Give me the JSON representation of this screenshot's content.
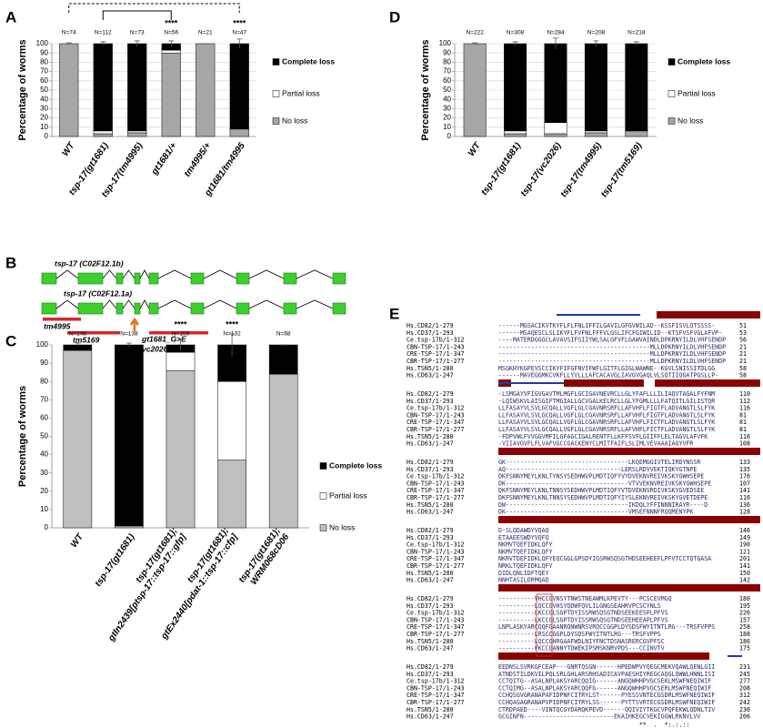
{
  "chart_data": [
    {
      "type": "bar",
      "stacked": true,
      "label": "A",
      "ylabel": "Percentage of worms",
      "categories": [
        "WT",
        "tsp-17(gt1681)",
        "tsp-17(tm4995)",
        "gt1681/+",
        "tm4995/+",
        "gt1681/tm4995"
      ],
      "series": [
        {
          "name": "No loss",
          "color": "#a6a6a6",
          "values": [
            100,
            3,
            4,
            90,
            100,
            8
          ]
        },
        {
          "name": "Partial loss",
          "color": "#ffffff",
          "values": [
            0,
            3,
            2,
            3,
            0,
            0
          ]
        },
        {
          "name": "Complete loss",
          "color": "#000000",
          "values": [
            0,
            94,
            94,
            7,
            0,
            92
          ]
        }
      ],
      "errors": [
        1,
        2,
        3,
        3,
        0,
        5
      ],
      "n_labels": [
        "N=74",
        "N=112",
        "N=73",
        "N=56",
        "N=21",
        "N=47"
      ],
      "significance_labels": [
        null,
        null,
        null,
        "****",
        null,
        "****"
      ],
      "ylim": [
        0,
        100
      ],
      "yticks": [
        0,
        10,
        20,
        30,
        40,
        50,
        60,
        70,
        80,
        90,
        100
      ],
      "grid": true
    },
    {
      "type": "bar",
      "stacked": true,
      "label": "C",
      "ylabel": "Percentage of worms",
      "categories": [
        [
          "WT"
        ],
        [
          "tsp-17(gt1681)"
        ],
        [
          "tsp-17(gt1681);",
          "gtIn2439[ptsp-17::tsp-17::gfp]"
        ],
        [
          "tsp-17(gt1681);",
          "gtEx2440[pdat-1::tsp-17::cfp]"
        ],
        [
          "tsp-17(gt1681);",
          "WRM068cD06"
        ]
      ],
      "series": [
        {
          "name": "No loss",
          "color": "#bfbfbf",
          "values": [
            97,
            1,
            86,
            37,
            84
          ]
        },
        {
          "name": "Partial loss",
          "color": "#ffffff",
          "values": [
            0,
            0,
            10,
            43,
            0
          ]
        },
        {
          "name": "Complete loss",
          "color": "#000000",
          "values": [
            3,
            99,
            4,
            20,
            16
          ]
        }
      ],
      "errors": [
        1,
        1,
        3,
        6,
        0
      ],
      "n_labels": [
        "N=148",
        "N=138",
        "N=109",
        "N=132",
        "N=68"
      ],
      "significance_labels": [
        null,
        null,
        "****",
        "****",
        null
      ],
      "ylim": [
        0,
        100
      ],
      "yticks": [
        0,
        10,
        20,
        30,
        40,
        50,
        60,
        70,
        80,
        90,
        100
      ],
      "grid": false
    },
    {
      "type": "bar",
      "stacked": true,
      "label": "D",
      "ylabel": "Percentage of worms",
      "categories": [
        "WT",
        "tsp-17(gt1681)",
        "tsp-17(vc2026)",
        "tsp-17(tm4995)",
        "tsp-17(tm5169)"
      ],
      "series": [
        {
          "name": "No loss",
          "color": "#a6a6a6",
          "values": [
            100,
            3,
            3,
            4,
            6
          ]
        },
        {
          "name": "Partial loss",
          "color": "#ffffff",
          "values": [
            0,
            3,
            12,
            2,
            0
          ]
        },
        {
          "name": "Complete loss",
          "color": "#000000",
          "values": [
            0,
            94,
            85,
            94,
            94
          ]
        }
      ],
      "errors": [
        1,
        2,
        6,
        3,
        2
      ],
      "n_labels": [
        "N=222",
        "N=308",
        "N=284",
        "N=208",
        "N=218"
      ],
      "significance_labels": [
        null,
        null,
        null,
        null,
        null
      ],
      "ylim": [
        0,
        100
      ],
      "yticks": [
        0,
        10,
        20,
        30,
        40,
        50,
        60,
        70,
        80,
        90,
        100
      ],
      "grid": true
    }
  ],
  "panel_b": {
    "label": "B",
    "transcripts": [
      "tsp-17 (C02F12.1b)",
      "tsp-17 (C02F12.1a)"
    ],
    "deletions": [
      "tm4995",
      "tm5169"
    ],
    "point_mutations": [
      "gt1681_G>E",
      "vc2026_G>R"
    ]
  },
  "panel_e": {
    "label": "E",
    "blocks": [
      {
        "rows": [
          {
            "name": "Hs.CD82/1-279",
            "seq": "------MGSACIKVTKYFLFLFNLIFFILGAVILGFGVWILAD--KSSFISVLQTSSSS-",
            "end": 51
          },
          {
            "name": "Hs.CD37/1-293",
            "seq": "------MSAQESCLSLIKYFLFVFNLFFFVLGSLIFCFGIWILID--KTSFVSFVGLAFVP-",
            "end": 53
          },
          {
            "name": "Ce.tsp-17b/1-312",
            "seq": "----MATERDGGGCLAVAVSIFSIIYWLSALGFVFLGAWVAINDLDPKRNYILDLVHFSENDP",
            "end": 56
          },
          {
            "name": "CBN-TSP-17/1-243",
            "seq": "------------------------------------------MLLDPKRNYILDLVHFSENDP",
            "end": 21
          },
          {
            "name": "CRE-TSP-17/1-347",
            "seq": "------------------------------------------MLLDPKRNYILDLVHFSENDP",
            "end": 21
          },
          {
            "name": "CBR-TSP-17/1-277",
            "seq": "------------------------------------------MLLDPKRNYILDLVHFSENDP",
            "end": 21
          },
          {
            "name": "Hs.TSN5/1-280",
            "seq": "MSGKHYKGPEVSCCIKYFIFGFNVIFWFLGITFLGIGLWAWNE--KGVLSNISSITDLGG",
            "end": 58
          },
          {
            "name": "Hs.CD63/1-247",
            "seq": "------MAVEGGMKCVKFLLYVLLLAFCACAVGLIAVGVGAQLVLSQTIIQGATPGSLLP-",
            "end": 58
          }
        ],
        "consensus": ""
      },
      {
        "rows": [
          {
            "name": "Hs.CD82/1-279",
            "seq": "-LSMGAYVFIGVGAVTMLMGFLGCIGAVNEVRCLLGLYFAFLLLILIAQVTAGALFYFNM",
            "end": 110
          },
          {
            "name": "Hs.CD37/1-293",
            "seq": "-LQIWSKVLAISGIFTMGIALLGCVGALKELRCLLGLYFGMLLLLFATQITLGILISTQR",
            "end": 112
          },
          {
            "name": "Ce.tsp-17b/1-312",
            "seq": "LLFASAYVLSVLGCQALLVGFLGLCGAVNRSRFLLAFVHFLFIGTFLADVANGTLSLFYK",
            "end": 116
          },
          {
            "name": "CBN-TSP-17/1-243",
            "seq": "LLFASAYVLSVLGCQALLVGFLGLCGAVNRSRFLLAFVHFLFIGTFLADVANGTLSLFYK",
            "end": 81
          },
          {
            "name": "CRE-TSP-17/1-347",
            "seq": "LLFASAYVLSVLGCQALLVGFLGLCGAVNRSRFLLAFVHFLFICTFLADVANGTLSLFYK",
            "end": 81
          },
          {
            "name": "CBR-TSP-17/1-277",
            "seq": "LLFASAYVLSVLGCQALLVGFLGLCGAVNRSRFLLAFVHFLFICTFLADVANGTLSLFYK",
            "end": 81
          },
          {
            "name": "Hs.TSN5/1-280",
            "seq": "-FDPVWLFVVGGVMFILGFAGCIGALRENTFLLKFFSVFLGIIFFLELTAGVLAFVFK",
            "end": 116
          },
          {
            "name": "Hs.CD63/1-247",
            "seq": "-VIIAVGVFLFLVAFVGCCGACKENYCLMITFAIFLSLIMLVEVAAAIAGYVFR",
            "end": 108
          }
        ],
        "consensus": "          :    *   :.: *  **  ..   *:  : :*   : ::: ."
      },
      {
        "rows": [
          {
            "name": "Hs.CD82/1-279",
            "seq": "GK----------------------------------LKQEMGGIVTELIRDYNSSR",
            "end": 133
          },
          {
            "name": "Hs.CD37/1-293",
            "seq": "AQ--------------------------------LERSLRDVVEKTIQKYGTNPE",
            "end": 135
          },
          {
            "name": "Ce.tsp-17b/1-312",
            "seq": "DKFSNNYMEYLKNLTYNSYSEDHWVPLMDTIQFYVYDVEKNVREIVKSKYGWHSEPE",
            "end": 176
          },
          {
            "name": "CBN-TSP-17/1-243",
            "seq": "DK----------------------------------VTVVEKNVREIVKSKYGWHSEPE",
            "end": 107
          },
          {
            "name": "CRE-TSP-17/1-347",
            "seq": "DKFSNNYMEYLKNLTNNSYSEDHWVPLMDTIQFYVTDVEKNVRDIVKSKYGVEDSEE",
            "end": 141
          },
          {
            "name": "CBR-TSP-17/1-277",
            "seq": "DKFSNNYMEYLKNLTNNSYSEDHWVPLMDTIQFYIYSLEKNVREIVKSKYGVETDEPE",
            "end": 116
          },
          {
            "name": "Hs.TSN5/1-280",
            "seq": "DW----------------------------------IKDQLYFFINNNIRAYR----D",
            "end": 136
          },
          {
            "name": "Hs.CD63/1-247",
            "seq": "DK----------------------------------VMSEFNNNFRQQMENYPK",
            "end": 128
          }
        ],
        "consensus": "                                      :  .   :"
      },
      {
        "rows": [
          {
            "name": "Hs.CD82/1-279",
            "seq": "D-SLQDAWDYVQAQ",
            "end": 146
          },
          {
            "name": "Hs.CD37/1-293",
            "seq": "ETAAEESWDYVQFQ",
            "end": 149
          },
          {
            "name": "Ce.tsp-17b/1-312",
            "seq": "NKMVTQEFIDKLQFY",
            "end": 190
          },
          {
            "name": "CBN-TSP-17/1-243",
            "seq": "NKMVTQEFIDKLQFY",
            "end": 121
          },
          {
            "name": "CRE-TSP-17/1-347",
            "seq": "NKRVTDEFIDKLQFYEQCGGLGPSDYIGSRWSQSGTHDSEEHEEFLPFVTCCTQTGASA",
            "end": 201
          },
          {
            "name": "CBR-TSP-17/1-277",
            "seq": "NRKLTQEFIDKLQFY",
            "end": 141
          },
          {
            "name": "Hs.TSN5/1-280",
            "seq": "DIDLQNLIDFTQEY",
            "end": 150
          },
          {
            "name": "Hs.CD63/1-247",
            "seq": "NNHTASILDRMQAD",
            "end": 142
          }
        ],
        "consensus": "   :  .  * *"
      },
      {
        "rows": [
          {
            "name": "Hs.CD82/1-279",
            "seq": "----------VHCCGVNSYTNWSTNEAWMLKPEVTY---PCSCEVMGQ",
            "end": 180
          },
          {
            "name": "Hs.CD37/1-293",
            "seq": "----------LQCCGVHSYQDWFQVLILGNGSEAHRVPCSCYNLS",
            "end": 195
          },
          {
            "name": "Ce.tsp-17b/1-312",
            "seq": "----------LKCCGLSGPTDYISSRWSQSGTNDSEEKEESPLPFVS",
            "end": 226
          },
          {
            "name": "CBN-TSP-17/1-243",
            "seq": "----------LKCCGLSGPTDYISSRWSQSGTNDSEEHEEAPLPFVS",
            "end": 157
          },
          {
            "name": "CRE-TSP-17/1-347",
            "seq": "LNPLASKYARCQQFGAANRQNWNRSVRQCCGGPLDYSDSFWYITNTLRG---TRSFVPPS",
            "end": 258
          },
          {
            "name": "CBR-TSP-17/1-277",
            "seq": "----------LRSCCGGPLDYSDSFWYITNTLRG---TRSFVPPS",
            "end": 188
          },
          {
            "name": "Hs.TSN5/1-280",
            "seq": "----------LQCCGHRGAAFWDLNIYFNCTDSNASRERCGVPFSC",
            "end": 186
          },
          {
            "name": "Hs.CD63/1-247",
            "seq": "----------FKCCGANNYTDWEKIPSMSKNRVPDS---CCINVTV",
            "end": 175
          }
        ],
        "consensus": "            ***          ::"
      },
      {
        "rows": [
          {
            "name": "Hs.CD82/1-279",
            "seq": "EEDNSLSVRKGFCEAP---GNRTQSGN------HPEDWPVYQEGCMEKVQAWLQENLGII",
            "end": 231
          },
          {
            "name": "Hs.CD37/1-293",
            "seq": "ATNDSTILDKVILPQLSRLGHLARSRHSADICAVPAESHIYREGCAQGLQWWLHNNLISI",
            "end": 245
          },
          {
            "name": "Ce.tsp-17b/1-312",
            "seq": "CCTQITG--ASALNPLAKSYARCQQIG------ANGQWHHPVGCSEKLMSWFNEQIWIF",
            "end": 277
          },
          {
            "name": "CBN-TSP-17/1-243",
            "seq": "CCTQIMG--ASALNPLAKSYARCQQFG------ANGQWHHPVGCSERLMSWFNEQIWIF",
            "end": 208
          },
          {
            "name": "CRE-TSP-17/1-347",
            "seq": "CCHQSGVGRANAPAFIDPNFCITRYLST------PYESSVNTECGSDRLMSWFNEQIWIF",
            "end": 312
          },
          {
            "name": "CBR-TSP-17/1-277",
            "seq": "CCHQAGAGRANAPVPIDPNFCITRYLSS------PYTTSVRTECGSDRLMSWFNEQIWIF",
            "end": 242
          },
          {
            "name": "Hs.TSN5/1-280",
            "seq": "CTRDPAED----VINTQCGYDARQKPEVD------QQIVIYTKGCVPQFEKWLQDNLTIV",
            "end": 236
          },
          {
            "name": "Hs.CD63/1-247",
            "seq": "GCGINFN-------------------------EKAIHKEGCVEKIGGWLRKNVLVV",
            "end": 206
          }
        ],
        "consensus": "                                       **  .  *:.:.::"
      }
    ]
  }
}
